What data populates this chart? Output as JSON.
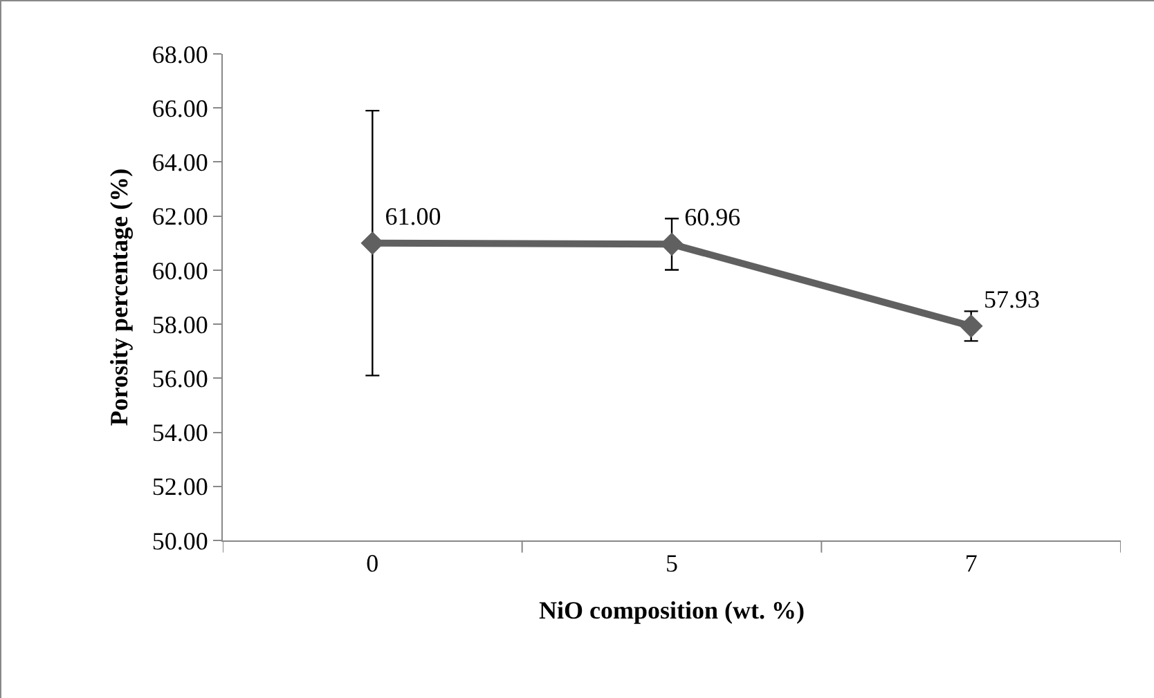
{
  "chart_data": {
    "type": "line",
    "xlabel": "NiO composition (wt. %)",
    "ylabel": "Porosity percentage (%)",
    "categories": [
      "0",
      "5",
      "7"
    ],
    "series": [
      {
        "color": "#606060",
        "values": [
          61.0,
          60.96,
          57.93
        ],
        "value_labels": [
          "61.00",
          "60.96",
          "57.93"
        ],
        "errors": [
          4.9,
          0.95,
          0.55
        ]
      }
    ],
    "ylim": [
      50,
      68
    ],
    "yticks": [
      {
        "value": 50,
        "label": "50.00"
      },
      {
        "value": 52,
        "label": "52.00"
      },
      {
        "value": 54,
        "label": "54.00"
      },
      {
        "value": 56,
        "label": "56.00"
      },
      {
        "value": 58,
        "label": "58.00"
      },
      {
        "value": 60,
        "label": "60.00"
      },
      {
        "value": 62,
        "label": "62.00"
      },
      {
        "value": 64,
        "label": "64.00"
      },
      {
        "value": 66,
        "label": "66.00"
      },
      {
        "value": 68,
        "label": "68.00"
      }
    ],
    "grid": false,
    "legend": false,
    "marker": "diamond",
    "line_style": "solid"
  }
}
